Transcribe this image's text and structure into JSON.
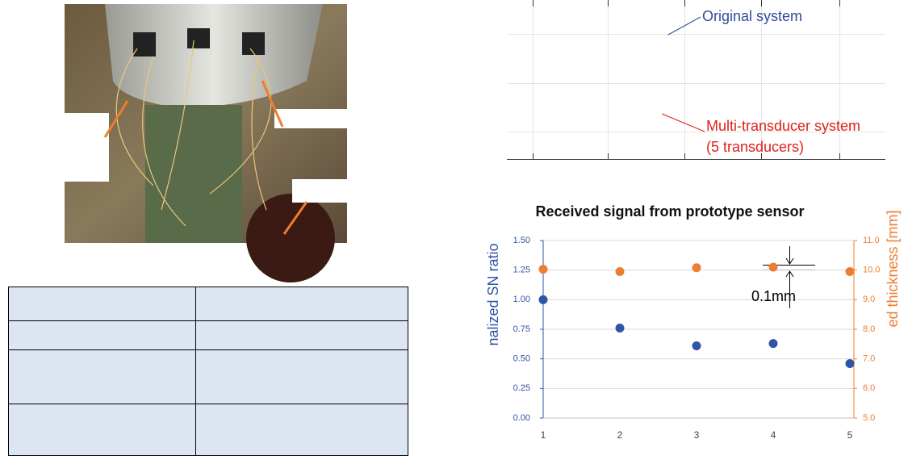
{
  "chart_data": [
    {
      "type": "annotations",
      "annotations": [
        {
          "lines": [
            "Original system"
          ],
          "color": "#2f4b9a"
        },
        {
          "lines": [
            "Multi-transducer system",
            "(5 transducers)"
          ],
          "color": "#e0201b"
        }
      ]
    },
    {
      "type": "scatter",
      "title": "Received signal from prototype sensor",
      "y_label": "nalized  SN ratio",
      "y2_label": "ed thickness [mm]",
      "annotation": "0.1mm",
      "x": [
        1,
        2,
        3,
        4,
        5
      ],
      "xlim": [
        1,
        5
      ],
      "xticks": [
        1,
        2,
        3,
        4,
        5
      ],
      "ylim": [
        0,
        1.5
      ],
      "yticks": [
        {
          "value": 0,
          "label": "0.00"
        },
        {
          "value": 0.25,
          "label": "0.25"
        },
        {
          "value": 0.5,
          "label": "0.50"
        },
        {
          "value": 0.75,
          "label": "0.75"
        },
        {
          "value": 1,
          "label": "1.00"
        },
        {
          "value": 1.25,
          "label": "1.25"
        },
        {
          "value": 1.5,
          "label": "1.50"
        }
      ],
      "y2lim": [
        5,
        11
      ],
      "y2ticks": [
        {
          "value": 5,
          "label": "5.0"
        },
        {
          "value": 6,
          "label": "6.0"
        },
        {
          "value": 7,
          "label": "7.0"
        },
        {
          "value": 8,
          "label": "8.0"
        },
        {
          "value": 9,
          "label": "9.0"
        },
        {
          "value": 10,
          "label": "10.0"
        },
        {
          "value": 11,
          "label": "11.0"
        }
      ],
      "grid": true,
      "series": [
        {
          "color": "#2f55a4",
          "values": [
            1.0,
            0.76,
            0.61,
            0.63,
            0.46
          ]
        },
        {
          "color": "#ed7d31",
          "axis": "y2",
          "values": [
            10.03,
            9.95,
            10.08,
            10.1,
            9.95
          ]
        }
      ]
    }
  ]
}
